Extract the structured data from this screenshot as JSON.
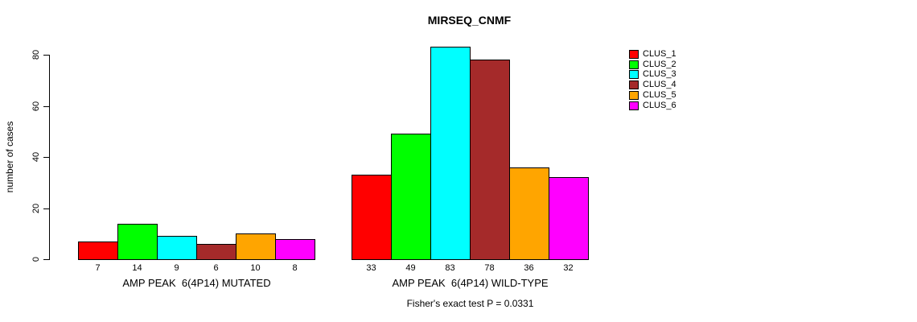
{
  "chart_data": {
    "type": "bar",
    "title": "MIRSEQ_CNMF",
    "ylabel": "number of cases",
    "ylim": [
      0,
      80
    ],
    "yticks": [
      0,
      20,
      40,
      60,
      80
    ],
    "grid": false,
    "legend_position": "right",
    "series": [
      {
        "name": "CLUS_1",
        "color": "#FF0000"
      },
      {
        "name": "CLUS_2",
        "color": "#00FF00"
      },
      {
        "name": "CLUS_3",
        "color": "#00FFFF"
      },
      {
        "name": "CLUS_4",
        "color": "#A52A2A"
      },
      {
        "name": "CLUS_5",
        "color": "#FFA500"
      },
      {
        "name": "CLUS_6",
        "color": "#FF00FF"
      }
    ],
    "groups": [
      {
        "label": "AMP PEAK  6(4P14) MUTATED",
        "values": [
          7,
          14,
          9,
          6,
          10,
          8
        ]
      },
      {
        "label": "AMP PEAK  6(4P14) WILD-TYPE",
        "values": [
          33,
          49,
          83,
          78,
          36,
          32
        ]
      }
    ],
    "footnote": "Fisher's exact test P = 0.0331"
  }
}
